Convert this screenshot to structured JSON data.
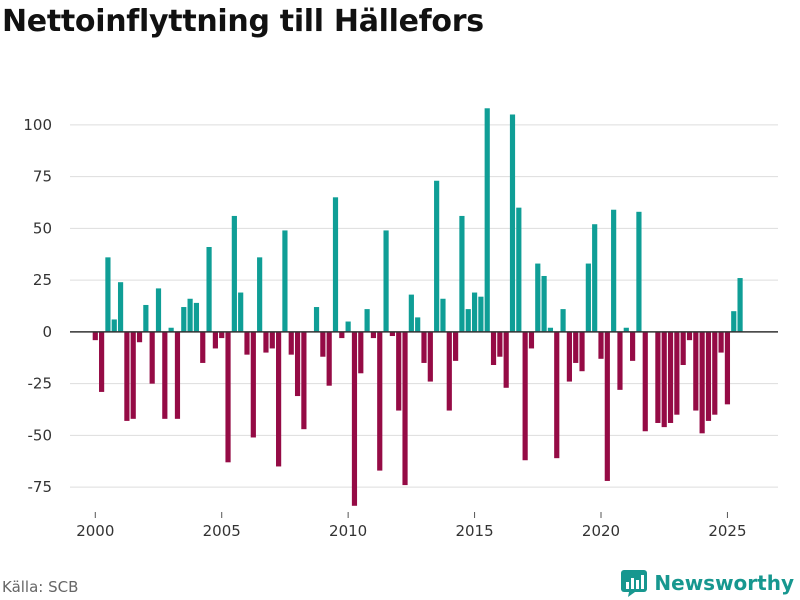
{
  "title": "Nettoinflyttning till Hällefors",
  "source": "Källa: SCB",
  "brand": {
    "name": "Newsworthy",
    "icon": "newsworthy-logo-icon"
  },
  "colors": {
    "positive": "#0f9e96",
    "negative": "#950b45",
    "grid": "#dddddd",
    "zero": "#333333",
    "brand": "#17978f"
  },
  "chart_data": {
    "type": "bar",
    "title": "Nettoinflyttning till Hällefors",
    "xlabel": "",
    "ylabel": "",
    "frequency": "quarterly",
    "start_year": 2000,
    "ylim": [
      -87,
      112
    ],
    "xlim": [
      1999.0,
      2027.0
    ],
    "yticks": [
      -75,
      -50,
      -25,
      0,
      25,
      50,
      75,
      100
    ],
    "xticks": [
      2000,
      2005,
      2010,
      2015,
      2020,
      2025
    ],
    "grid": true,
    "legend": "none",
    "values": [
      -4,
      -29,
      36,
      6,
      24,
      -43,
      -42,
      -5,
      13,
      -25,
      21,
      -42,
      2,
      -42,
      12,
      16,
      14,
      -15,
      41,
      -8,
      -3,
      -63,
      56,
      19,
      -11,
      -51,
      36,
      -10,
      -8,
      -65,
      49,
      -11,
      -31,
      -47,
      0,
      12,
      -12,
      -26,
      65,
      -3,
      5,
      -84,
      -20,
      11,
      -3,
      -67,
      49,
      -2,
      -38,
      -74,
      18,
      7,
      -15,
      -24,
      73,
      16,
      -38,
      -14,
      56,
      11,
      19,
      17,
      108,
      -16,
      -12,
      -27,
      105,
      60,
      -62,
      -8,
      33,
      27,
      2,
      -61,
      11,
      -24,
      -15,
      -19,
      33,
      52,
      -13,
      -72,
      59,
      -28,
      2,
      -14,
      58,
      -48,
      0,
      -44,
      -46,
      -44,
      -40,
      -16,
      -4,
      -38,
      -49,
      -43,
      -40,
      -10,
      -35,
      10,
      26
    ]
  }
}
